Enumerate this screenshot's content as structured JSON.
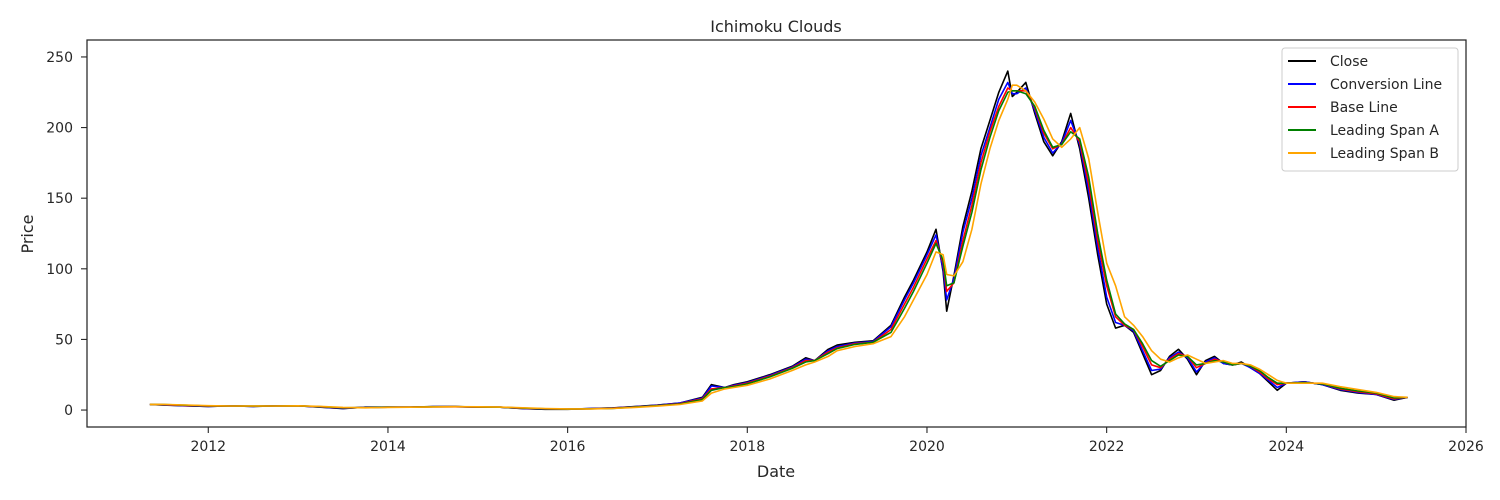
{
  "chart_data": {
    "type": "line",
    "title": "Ichimoku Clouds",
    "xlabel": "Date",
    "ylabel": "Price",
    "xlim": [
      2010.65,
      2026.0
    ],
    "ylim": [
      -12,
      262
    ],
    "xticks": [
      2012,
      2014,
      2016,
      2018,
      2020,
      2022,
      2024,
      2026
    ],
    "yticks": [
      0,
      50,
      100,
      150,
      200,
      250
    ],
    "grid": false,
    "legend_position": "top-right",
    "series": [
      {
        "name": "Close",
        "color": "#000000",
        "x": [
          2011.35,
          2011.5,
          2011.75,
          2012.0,
          2012.25,
          2012.5,
          2012.75,
          2013.0,
          2013.25,
          2013.5,
          2013.75,
          2014.0,
          2014.25,
          2014.5,
          2014.75,
          2015.0,
          2015.25,
          2015.5,
          2015.75,
          2016.0,
          2016.25,
          2016.5,
          2016.75,
          2017.0,
          2017.25,
          2017.5,
          2017.6,
          2017.75,
          2017.85,
          2018.0,
          2018.25,
          2018.5,
          2018.65,
          2018.75,
          2018.9,
          2019.0,
          2019.2,
          2019.4,
          2019.6,
          2019.75,
          2019.85,
          2020.0,
          2020.1,
          2020.18,
          2020.22,
          2020.3,
          2020.4,
          2020.5,
          2020.6,
          2020.7,
          2020.8,
          2020.9,
          2020.95,
          2021.0,
          2021.1,
          2021.2,
          2021.3,
          2021.4,
          2021.5,
          2021.6,
          2021.7,
          2021.8,
          2021.9,
          2022.0,
          2022.1,
          2022.2,
          2022.3,
          2022.4,
          2022.5,
          2022.6,
          2022.7,
          2022.8,
          2022.9,
          2023.0,
          2023.1,
          2023.2,
          2023.3,
          2023.4,
          2023.5,
          2023.6,
          2023.7,
          2023.8,
          2023.9,
          2024.0,
          2024.2,
          2024.4,
          2024.6,
          2024.8,
          2025.0,
          2025.2,
          2025.35
        ],
        "y": [
          4,
          3.5,
          3,
          2.5,
          3,
          2.5,
          3,
          3,
          2,
          1,
          2,
          2,
          2,
          2.5,
          2.5,
          2,
          2,
          1,
          0.5,
          0.5,
          1,
          1.5,
          2.5,
          3.5,
          5,
          9,
          18,
          16,
          18,
          20,
          25,
          31,
          37,
          35,
          43,
          46,
          48,
          49,
          60,
          80,
          92,
          112,
          128,
          98,
          70,
          95,
          130,
          155,
          185,
          205,
          225,
          240,
          222,
          225,
          232,
          210,
          190,
          180,
          190,
          210,
          185,
          150,
          110,
          75,
          58,
          60,
          55,
          40,
          25,
          28,
          38,
          43,
          36,
          25,
          35,
          38,
          33,
          32,
          34,
          30,
          26,
          20,
          14,
          19,
          20,
          18,
          14,
          12,
          11,
          7,
          9
        ]
      },
      {
        "name": "Conversion Line",
        "color": "#0000ff",
        "x": [
          2011.35,
          2011.5,
          2011.75,
          2012.0,
          2012.25,
          2012.5,
          2012.75,
          2013.0,
          2013.25,
          2013.5,
          2013.75,
          2014.0,
          2014.25,
          2014.5,
          2014.75,
          2015.0,
          2015.25,
          2015.5,
          2015.75,
          2016.0,
          2016.25,
          2016.5,
          2016.75,
          2017.0,
          2017.25,
          2017.5,
          2017.6,
          2017.75,
          2017.85,
          2018.0,
          2018.25,
          2018.5,
          2018.65,
          2018.75,
          2018.9,
          2019.0,
          2019.2,
          2019.4,
          2019.6,
          2019.75,
          2019.85,
          2020.0,
          2020.1,
          2020.18,
          2020.22,
          2020.3,
          2020.4,
          2020.5,
          2020.6,
          2020.7,
          2020.8,
          2020.9,
          2020.95,
          2021.0,
          2021.1,
          2021.2,
          2021.3,
          2021.4,
          2021.5,
          2021.6,
          2021.7,
          2021.8,
          2021.9,
          2022.0,
          2022.1,
          2022.2,
          2022.3,
          2022.4,
          2022.5,
          2022.6,
          2022.7,
          2022.8,
          2022.9,
          2023.0,
          2023.1,
          2023.2,
          2023.3,
          2023.4,
          2023.5,
          2023.6,
          2023.7,
          2023.8,
          2023.9,
          2024.0,
          2024.2,
          2024.4,
          2024.6,
          2024.8,
          2025.0,
          2025.2,
          2025.35
        ],
        "y": [
          4,
          3.6,
          3.1,
          2.6,
          3,
          2.6,
          3,
          3,
          2.1,
          1.2,
          2,
          2,
          2,
          2.4,
          2.4,
          2,
          2,
          1.1,
          0.6,
          0.6,
          1,
          1.4,
          2.4,
          3.4,
          5,
          8.5,
          17,
          16,
          17.5,
          19.5,
          24.5,
          30.5,
          36,
          35,
          42,
          45,
          47.5,
          48.5,
          59,
          78,
          90,
          110,
          124,
          100,
          78,
          93,
          126,
          150,
          180,
          200,
          220,
          232,
          224,
          224,
          228,
          212,
          193,
          182,
          189,
          205,
          188,
          155,
          115,
          80,
          62,
          60,
          56,
          42,
          28,
          29,
          37,
          41,
          37,
          27,
          34,
          37,
          33,
          32,
          33,
          30,
          26,
          21,
          16,
          19,
          20,
          18,
          14.5,
          12.5,
          11,
          7.5,
          9
        ]
      },
      {
        "name": "Base Line",
        "color": "#ff0000",
        "x": [
          2011.35,
          2011.5,
          2011.75,
          2012.0,
          2012.25,
          2012.5,
          2012.75,
          2013.0,
          2013.25,
          2013.5,
          2013.75,
          2014.0,
          2014.25,
          2014.5,
          2014.75,
          2015.0,
          2015.25,
          2015.5,
          2015.75,
          2016.0,
          2016.25,
          2016.5,
          2016.75,
          2017.0,
          2017.25,
          2017.5,
          2017.6,
          2017.75,
          2017.85,
          2018.0,
          2018.25,
          2018.5,
          2018.65,
          2018.75,
          2018.9,
          2019.0,
          2019.2,
          2019.4,
          2019.6,
          2019.75,
          2019.85,
          2020.0,
          2020.1,
          2020.18,
          2020.22,
          2020.3,
          2020.4,
          2020.5,
          2020.6,
          2020.7,
          2020.8,
          2020.9,
          2020.95,
          2021.0,
          2021.1,
          2021.2,
          2021.3,
          2021.4,
          2021.5,
          2021.6,
          2021.7,
          2021.8,
          2021.9,
          2022.0,
          2022.1,
          2022.2,
          2022.3,
          2022.4,
          2022.5,
          2022.6,
          2022.7,
          2022.8,
          2022.9,
          2023.0,
          2023.1,
          2023.2,
          2023.3,
          2023.4,
          2023.5,
          2023.6,
          2023.7,
          2023.8,
          2023.9,
          2024.0,
          2024.2,
          2024.4,
          2024.6,
          2024.8,
          2025.0,
          2025.2,
          2025.35
        ],
        "y": [
          4,
          3.8,
          3.3,
          2.8,
          2.9,
          2.7,
          2.9,
          3,
          2.3,
          1.5,
          1.8,
          2,
          2,
          2.3,
          2.4,
          2.1,
          2,
          1.3,
          0.8,
          0.7,
          0.9,
          1.3,
          2.2,
          3.2,
          4.5,
          8,
          15,
          16,
          17,
          19,
          24,
          30,
          35,
          35,
          41,
          44,
          47,
          48,
          57,
          75,
          87,
          107,
          120,
          104,
          84,
          90,
          120,
          145,
          175,
          197,
          215,
          228,
          226,
          226,
          226,
          214,
          196,
          185,
          188,
          200,
          190,
          160,
          120,
          88,
          66,
          60,
          57,
          45,
          32,
          30,
          36,
          40,
          38,
          30,
          33,
          36,
          34,
          32,
          33,
          31,
          27,
          22,
          18,
          19,
          19.5,
          18.5,
          15,
          13,
          11.5,
          8,
          9
        ]
      },
      {
        "name": "Leading Span A",
        "color": "#008000",
        "x": [
          2011.35,
          2011.5,
          2011.75,
          2012.0,
          2012.25,
          2012.5,
          2012.75,
          2013.0,
          2013.25,
          2013.5,
          2013.75,
          2014.0,
          2014.25,
          2014.5,
          2014.75,
          2015.0,
          2015.25,
          2015.5,
          2015.75,
          2016.0,
          2016.25,
          2016.5,
          2016.75,
          2017.0,
          2017.25,
          2017.5,
          2017.6,
          2017.75,
          2017.85,
          2018.0,
          2018.25,
          2018.5,
          2018.65,
          2018.75,
          2018.9,
          2019.0,
          2019.2,
          2019.4,
          2019.6,
          2019.75,
          2019.85,
          2020.0,
          2020.1,
          2020.18,
          2020.22,
          2020.3,
          2020.4,
          2020.5,
          2020.6,
          2020.7,
          2020.8,
          2020.9,
          2020.95,
          2021.0,
          2021.1,
          2021.2,
          2021.3,
          2021.4,
          2021.5,
          2021.6,
          2021.7,
          2021.8,
          2021.9,
          2022.0,
          2022.1,
          2022.2,
          2022.3,
          2022.4,
          2022.5,
          2022.6,
          2022.7,
          2022.8,
          2022.9,
          2023.0,
          2023.1,
          2023.2,
          2023.3,
          2023.4,
          2023.5,
          2023.6,
          2023.7,
          2023.8,
          2023.9,
          2024.0,
          2024.2,
          2024.4,
          2024.6,
          2024.8,
          2025.0,
          2025.2,
          2025.35
        ],
        "y": [
          4,
          3.9,
          3.4,
          2.9,
          2.9,
          2.8,
          2.9,
          3,
          2.4,
          1.6,
          1.7,
          2,
          2,
          2.3,
          2.4,
          2.2,
          2,
          1.4,
          0.9,
          0.7,
          0.9,
          1.2,
          2.1,
          3.1,
          4.3,
          7.5,
          14,
          16,
          16.5,
          18.5,
          23.5,
          29.5,
          34,
          35,
          40,
          43.5,
          46.5,
          48,
          55,
          72,
          84,
          104,
          118,
          106,
          88,
          90,
          116,
          140,
          170,
          193,
          212,
          225,
          226,
          226,
          224,
          215,
          198,
          186,
          188,
          197,
          192,
          165,
          125,
          92,
          68,
          61,
          57,
          47,
          35,
          31,
          35,
          39,
          38,
          32,
          33,
          35,
          34,
          32,
          33,
          31,
          28,
          23,
          19,
          19,
          19.5,
          18.5,
          15.5,
          13.5,
          12,
          8.5,
          9
        ]
      },
      {
        "name": "Leading Span B",
        "color": "#ffa500",
        "x": [
          2011.35,
          2011.5,
          2011.75,
          2012.0,
          2012.25,
          2012.5,
          2012.75,
          2013.0,
          2013.25,
          2013.5,
          2013.75,
          2014.0,
          2014.25,
          2014.5,
          2014.75,
          2015.0,
          2015.25,
          2015.5,
          2015.75,
          2016.0,
          2016.25,
          2016.5,
          2016.75,
          2017.0,
          2017.25,
          2017.5,
          2017.6,
          2017.75,
          2017.85,
          2018.0,
          2018.25,
          2018.5,
          2018.65,
          2018.75,
          2018.9,
          2019.0,
          2019.2,
          2019.4,
          2019.6,
          2019.75,
          2019.85,
          2020.0,
          2020.1,
          2020.18,
          2020.22,
          2020.3,
          2020.4,
          2020.5,
          2020.6,
          2020.7,
          2020.8,
          2020.9,
          2020.95,
          2021.0,
          2021.1,
          2021.2,
          2021.3,
          2021.4,
          2021.5,
          2021.6,
          2021.7,
          2021.8,
          2021.9,
          2022.0,
          2022.1,
          2022.2,
          2022.3,
          2022.4,
          2022.5,
          2022.6,
          2022.7,
          2022.8,
          2022.9,
          2023.0,
          2023.1,
          2023.2,
          2023.3,
          2023.4,
          2023.5,
          2023.6,
          2023.7,
          2023.8,
          2023.9,
          2024.0,
          2024.2,
          2024.4,
          2024.6,
          2024.8,
          2025.0,
          2025.2,
          2025.35
        ],
        "y": [
          4,
          4,
          3.6,
          3.1,
          2.9,
          2.9,
          2.9,
          3,
          2.6,
          1.9,
          1.6,
          1.9,
          2,
          2.2,
          2.4,
          2.3,
          2.1,
          1.6,
          1.1,
          0.8,
          0.8,
          1.1,
          1.9,
          2.8,
          3.9,
          6.5,
          12,
          15,
          16,
          17.5,
          22,
          28,
          32,
          34,
          38,
          42,
          45,
          47,
          52,
          66,
          78,
          96,
          112,
          110,
          96,
          95,
          105,
          128,
          160,
          185,
          205,
          220,
          230,
          230,
          226,
          218,
          206,
          192,
          186,
          192,
          200,
          178,
          140,
          104,
          88,
          66,
          60,
          52,
          42,
          36,
          34,
          37,
          39,
          36,
          33,
          34,
          35,
          33,
          33,
          32,
          29,
          25,
          21,
          19,
          19,
          19,
          16.5,
          14.5,
          12.5,
          9.5,
          9
        ]
      }
    ]
  }
}
